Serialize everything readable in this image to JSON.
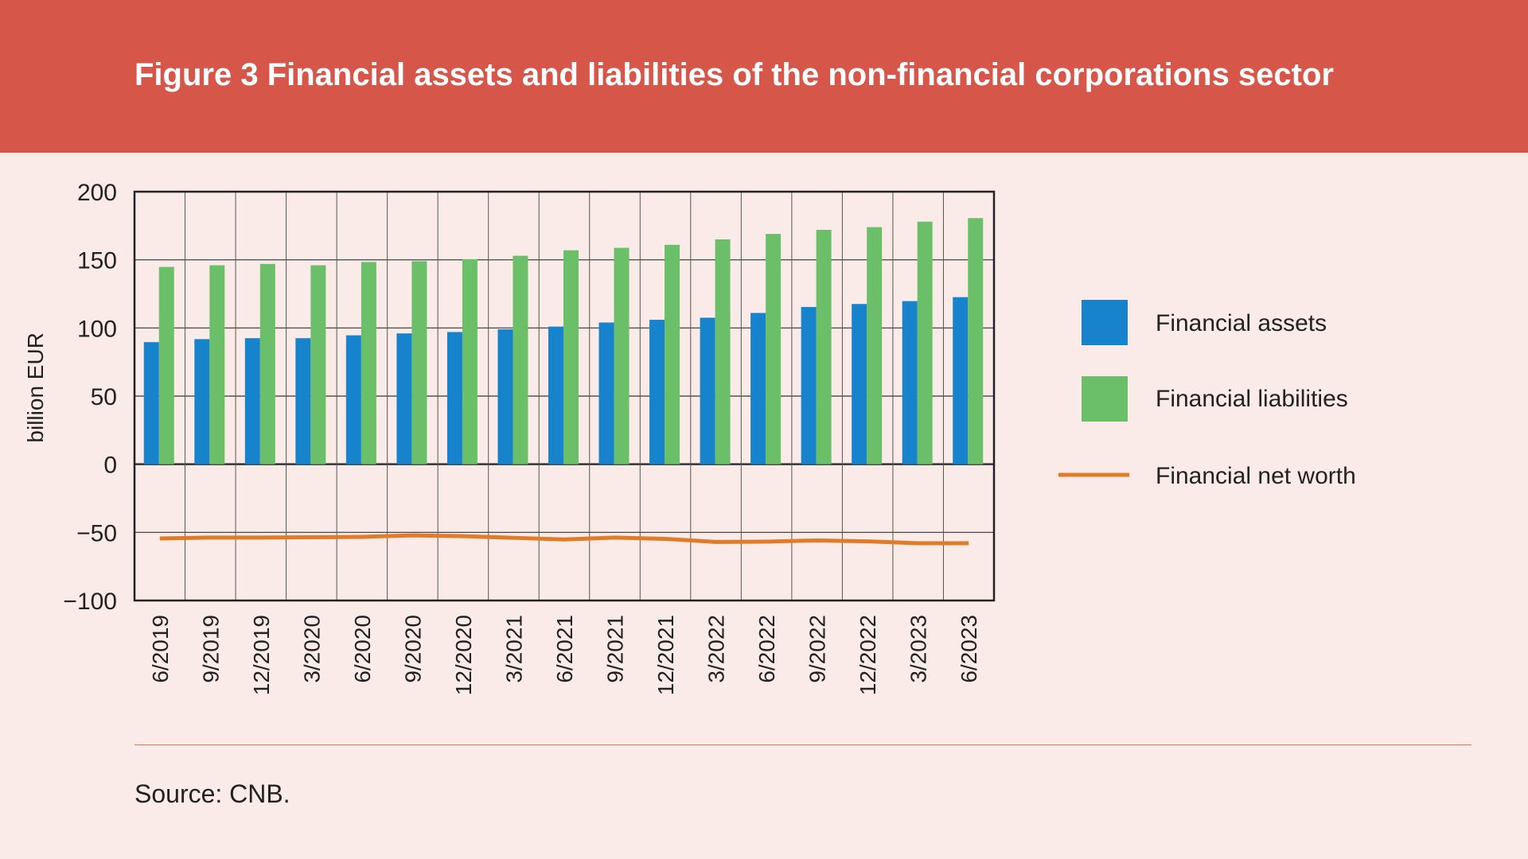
{
  "title": "Figure 3 Financial assets and liabilities of the non-financial corporations sector",
  "source": "Source: CNB.",
  "chart_data": {
    "type": "bar",
    "title": "Figure 3 Financial assets and liabilities of the non-financial corporations sector",
    "ylabel": "billion EUR",
    "xlabel": "",
    "ylim": [
      -100,
      200
    ],
    "yticks": [
      200,
      150,
      100,
      50,
      0,
      -50,
      -100
    ],
    "ytick_labels": [
      "200",
      "150",
      "100",
      "50",
      "0",
      "−50",
      "−100"
    ],
    "grid": true,
    "legend_position": "right",
    "categories": [
      "6/2019",
      "9/2019",
      "12/2019",
      "3/2020",
      "6/2020",
      "9/2020",
      "12/2020",
      "3/2021",
      "6/2021",
      "9/2021",
      "12/2021",
      "3/2022",
      "6/2022",
      "9/2022",
      "12/2022",
      "3/2023",
      "6/2023"
    ],
    "series": [
      {
        "name": "Financial assets",
        "type": "bar",
        "color": "#1683cc",
        "values": [
          89.6,
          91.8,
          92.5,
          92.5,
          94.6,
          96.0,
          97.0,
          99.0,
          101.0,
          104.0,
          106.0,
          107.5,
          111.0,
          115.4,
          117.6,
          119.7,
          122.6
        ]
      },
      {
        "name": "Financial liabilities",
        "type": "bar",
        "color": "#6bbf68",
        "values": [
          144.8,
          146.0,
          147.0,
          146.0,
          148.4,
          149.0,
          150.5,
          153.0,
          157.0,
          158.8,
          161.0,
          165.0,
          169.0,
          172.0,
          174.0,
          178.0,
          180.6
        ]
      },
      {
        "name": "Financial net worth",
        "type": "line",
        "color": "#e07b2a",
        "values": [
          -54.5,
          -53.8,
          -53.8,
          -53.6,
          -53.3,
          -52.2,
          -52.8,
          -54.0,
          -55.2,
          -53.8,
          -54.8,
          -57.0,
          -56.8,
          -55.9,
          -56.6,
          -58.0,
          -58.0
        ]
      }
    ]
  }
}
